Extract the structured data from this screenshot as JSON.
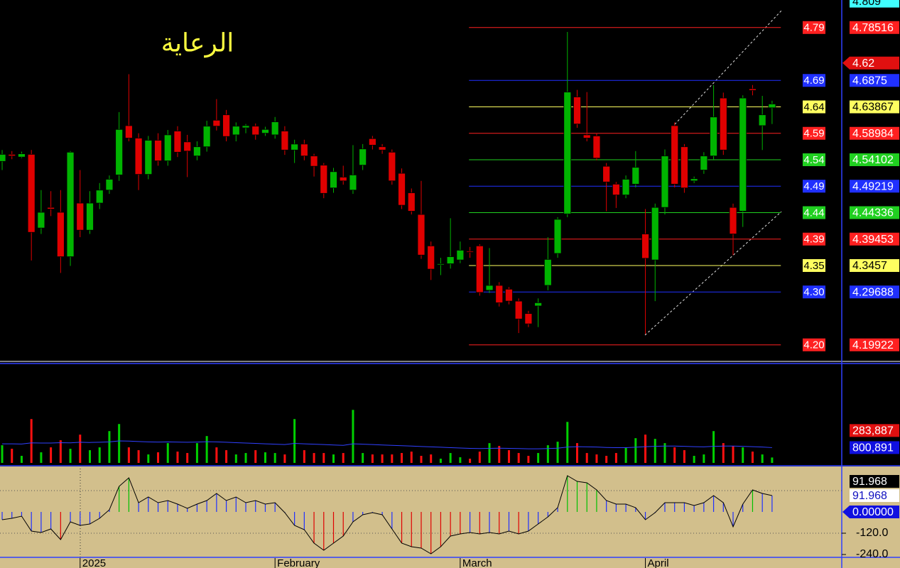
{
  "chart_data": [
    {
      "type": "candlestick",
      "title": "الرعاية",
      "up_color": "#00b400",
      "down_color": "#e00000",
      "xlim": [
        -0.22,
        86.15
      ],
      "ylim": [
        4.17,
        4.836
      ],
      "xticks": [
        {
          "value": 8,
          "label": "2025"
        },
        {
          "value": 28,
          "label": "February"
        },
        {
          "value": 47,
          "label": "March"
        },
        {
          "value": 66,
          "label": "April"
        }
      ],
      "open": [
        4.538,
        4.551,
        4.546,
        4.551,
        4.415,
        4.453,
        4.444,
        4.362,
        4.461,
        4.411,
        4.461,
        4.485,
        4.513,
        4.604,
        4.581,
        4.514,
        4.577,
        4.539,
        4.594,
        4.574,
        4.548,
        4.565,
        4.614,
        4.624,
        4.587,
        4.6,
        4.603,
        4.59,
        4.587,
        4.594,
        4.559,
        4.57,
        4.548,
        4.531,
        4.489,
        4.509,
        4.485,
        4.531,
        4.58,
        4.565,
        4.555,
        4.516,
        4.48,
        4.44,
        4.382,
        4.347,
        4.349,
        4.356,
        4.372,
        4.382,
        4.3,
        4.309,
        4.302,
        4.28,
        4.257,
        4.271,
        4.309,
        4.368,
        4.441,
        4.657,
        4.587,
        4.585,
        4.529,
        4.496,
        4.476,
        4.496,
        4.404,
        4.356,
        4.453,
        4.604,
        4.565,
        4.502,
        4.522,
        4.548,
        4.655,
        4.453,
        4.446,
        4.672,
        4.604,
        4.637
      ],
      "high": [
        4.559,
        4.557,
        4.556,
        4.559,
        4.485,
        4.483,
        4.485,
        4.557,
        4.522,
        4.483,
        4.498,
        4.512,
        4.629,
        4.699,
        4.59,
        4.585,
        4.59,
        4.596,
        4.603,
        4.587,
        4.575,
        4.613,
        4.653,
        4.633,
        4.61,
        4.607,
        4.608,
        4.602,
        4.62,
        4.603,
        4.578,
        4.578,
        4.552,
        4.535,
        4.526,
        4.53,
        4.568,
        4.57,
        4.585,
        4.57,
        4.56,
        4.525,
        4.488,
        4.502,
        4.39,
        4.36,
        4.433,
        4.39,
        4.38,
        4.385,
        4.378,
        4.315,
        4.306,
        4.285,
        4.262,
        4.285,
        4.398,
        4.435,
        4.777,
        4.67,
        4.666,
        4.59,
        4.535,
        4.5,
        4.512,
        4.557,
        4.45,
        4.46,
        4.56,
        4.61,
        4.57,
        4.51,
        4.555,
        4.679,
        4.665,
        4.46,
        4.66,
        4.679,
        4.659,
        4.65
      ],
      "low": [
        4.522,
        4.542,
        4.544,
        4.355,
        4.404,
        4.437,
        4.332,
        4.345,
        4.398,
        4.404,
        4.45,
        4.478,
        4.502,
        4.575,
        4.485,
        4.505,
        4.53,
        4.53,
        4.546,
        4.509,
        4.54,
        4.556,
        4.595,
        4.575,
        4.575,
        4.59,
        4.578,
        4.585,
        4.58,
        4.55,
        4.535,
        4.54,
        4.51,
        4.47,
        4.48,
        4.495,
        4.478,
        4.522,
        4.56,
        4.552,
        4.495,
        4.45,
        4.44,
        4.358,
        4.319,
        4.328,
        4.34,
        4.35,
        4.36,
        4.29,
        4.295,
        4.27,
        4.274,
        4.221,
        4.232,
        4.232,
        4.3,
        4.36,
        4.435,
        4.6,
        4.575,
        4.54,
        4.446,
        4.452,
        4.47,
        4.49,
        4.219,
        4.28,
        4.44,
        4.49,
        4.48,
        4.498,
        4.515,
        4.54,
        4.55,
        4.365,
        4.417,
        4.66,
        4.559,
        4.607
      ],
      "close": [
        4.551,
        4.548,
        4.552,
        4.407,
        4.444,
        4.45,
        4.362,
        4.555,
        4.411,
        4.461,
        4.485,
        4.505,
        4.597,
        4.581,
        4.514,
        4.577,
        4.539,
        4.587,
        4.555,
        4.557,
        4.565,
        4.603,
        4.603,
        4.584,
        4.603,
        4.604,
        4.587,
        4.597,
        4.611,
        4.559,
        4.57,
        4.548,
        4.529,
        4.479,
        4.519,
        4.502,
        4.513,
        4.561,
        4.568,
        4.559,
        4.502,
        4.457,
        4.446,
        4.365,
        4.339,
        4.349,
        4.362,
        4.374,
        4.37,
        4.296,
        4.309,
        4.277,
        4.28,
        4.247,
        4.238,
        4.277,
        4.357,
        4.431,
        4.666,
        4.607,
        4.581,
        4.544,
        4.5,
        4.476,
        4.505,
        4.527,
        4.359,
        4.453,
        4.548,
        4.496,
        4.489,
        4.506,
        4.548,
        4.62,
        4.559,
        4.404,
        4.655,
        4.669,
        4.624,
        4.644
      ],
      "fib_x": [
        47.9,
        79.9
      ],
      "levels": [
        {
          "value": 4.78516,
          "label": "4.79",
          "color": "#ff2020"
        },
        {
          "value": 4.6875,
          "label": "4.69",
          "color": "#2030ff"
        },
        {
          "value": 4.63867,
          "label": "4.64",
          "color": "#ffff60"
        },
        {
          "value": 4.58984,
          "label": "4.59",
          "color": "#ff2020"
        },
        {
          "value": 4.54102,
          "label": "4.54",
          "color": "#20d020"
        },
        {
          "value": 4.49219,
          "label": "4.49",
          "color": "#2030ff"
        },
        {
          "value": 4.44336,
          "label": "4.44",
          "color": "#20d020"
        },
        {
          "value": 4.39453,
          "label": "4.39",
          "color": "#ff2020"
        },
        {
          "value": 4.3457,
          "label": "4.35",
          "color": "#ffff60"
        },
        {
          "value": 4.29688,
          "label": "4.30",
          "color": "#2030ff"
        },
        {
          "value": 4.19922,
          "label": "4.20",
          "color": "#ff2020"
        }
      ],
      "markers": [
        {
          "value": 4.809,
          "color": "#40ffff"
        },
        {
          "value": 4.62,
          "color": "#e01010",
          "arrow": true
        },
        {
          "value": 4.44056,
          "color": "#d8c898"
        }
      ]
    },
    {
      "type": "volume",
      "up_color": "#00d000",
      "down_color": "#ff1010",
      "ma_color": "#3040ff",
      "ylim": [
        0,
        5200000
      ],
      "values": [
        925000,
        740000,
        370000,
        2294000,
        555000,
        814000,
        1184000,
        740000,
        1480000,
        666000,
        814000,
        1665000,
        2035000,
        814000,
        666000,
        444000,
        555000,
        1036000,
        592000,
        518000,
        1036000,
        1406000,
        814000,
        666000,
        444000,
        518000,
        666000,
        555000,
        518000,
        444000,
        2294000,
        666000,
        518000,
        518000,
        444000,
        518000,
        2775000,
        518000,
        444000,
        444000,
        444000,
        518000,
        592000,
        370000,
        444000,
        222000,
        518000,
        296000,
        222000,
        592000,
        1036000,
        888000,
        666000,
        518000,
        370000,
        518000,
        925000,
        1110000,
        2146000,
        1036000,
        518000,
        444000,
        370000,
        518000,
        814000,
        1295000,
        1480000,
        1258000,
        1036000,
        814000,
        666000,
        370000,
        444000,
        1665000,
        1036000,
        888000,
        814000,
        592000,
        444000,
        283887
      ],
      "average": [
        1000000,
        1000000,
        990000,
        1050000,
        1040000,
        1040000,
        1060000,
        1050000,
        1080000,
        1070000,
        1080000,
        1100000,
        1150000,
        1140000,
        1120000,
        1100000,
        1090000,
        1100000,
        1090000,
        1080000,
        1090000,
        1110000,
        1100000,
        1080000,
        1060000,
        1040000,
        1020000,
        1000000,
        980000,
        960000,
        1020000,
        1000000,
        980000,
        960000,
        940000,
        920000,
        1000000,
        980000,
        960000,
        940000,
        920000,
        900000,
        880000,
        860000,
        840000,
        820000,
        800000,
        780000,
        760000,
        750000,
        760000,
        770000,
        760000,
        750000,
        740000,
        740000,
        750000,
        770000,
        830000,
        850000,
        840000,
        830000,
        810000,
        800000,
        800000,
        820000,
        850000,
        870000,
        880000,
        880000,
        870000,
        850000,
        840000,
        870000,
        880000,
        880000,
        870000,
        850000,
        830000,
        800891
      ],
      "markers": [
        {
          "value": 800891,
          "label": "800,891",
          "color": "#1010e0"
        },
        {
          "value": 283887,
          "label": "283,887",
          "color": "#e01010"
        }
      ]
    },
    {
      "type": "oscillator",
      "line_color": "#000000",
      "colors": [
        "#00c000",
        "#2030ff",
        "#e00000"
      ],
      "ylim": [
        -256,
        256
      ],
      "hlines": [
        120,
        -120
      ],
      "yticks": [
        {
          "value": -120,
          "label": "-120.0"
        },
        {
          "value": -240,
          "label": "-240.0"
        }
      ],
      "values": [
        -44,
        -36,
        -24,
        -108,
        -116,
        -96,
        -156,
        -56,
        -76,
        -68,
        -36,
        12,
        144,
        192,
        52,
        84,
        52,
        64,
        44,
        20,
        44,
        64,
        104,
        64,
        84,
        52,
        64,
        44,
        52,
        -4,
        -76,
        -100,
        -176,
        -216,
        -176,
        -136,
        -56,
        -16,
        -4,
        -16,
        -96,
        -176,
        -196,
        -204,
        -236,
        -196,
        -136,
        -124,
        -116,
        -124,
        -116,
        -124,
        -108,
        -124,
        -108,
        -68,
        -28,
        24,
        204,
        172,
        164,
        124,
        64,
        44,
        44,
        24,
        -44,
        -4,
        52,
        52,
        52,
        36,
        52,
        92,
        52,
        -84,
        44,
        124,
        104,
        91.968
      ],
      "markers": [
        {
          "value": 91.968,
          "color": "#ffffff"
        },
        {
          "value": 91.968,
          "color": "#000000"
        },
        {
          "value": 0,
          "label": "0.00000",
          "color": "#1010e0",
          "arrow": true
        }
      ]
    }
  ]
}
